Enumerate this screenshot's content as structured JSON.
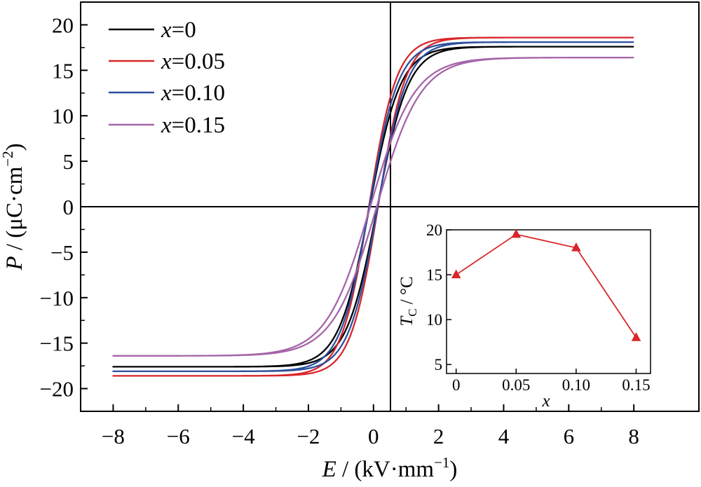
{
  "chart_data": [
    {
      "type": "line",
      "chart": "main",
      "xlabel": {
        "var": "E",
        "sep": " / (",
        "unit": "kV·mm",
        "sup": "−1",
        "end": ")"
      },
      "ylabel": {
        "var": "P",
        "sep": " / (",
        "unit": "μC·cm",
        "sup": "−2",
        "end": ")"
      },
      "xlim": [
        -9,
        10
      ],
      "ylim": [
        -22.5,
        22.5
      ],
      "xticks": [
        -8,
        -6,
        -4,
        -2,
        0,
        2,
        4,
        6,
        8
      ],
      "xtick_labels": [
        "−8",
        "−6",
        "−4",
        "−2",
        "0",
        "2",
        "4",
        "6",
        "8"
      ],
      "yticks": [
        -20,
        -15,
        -10,
        -5,
        0,
        5,
        10,
        15,
        20
      ],
      "ytick_labels": [
        "−20",
        "−15",
        "−10",
        "−5",
        "0",
        "5",
        "10",
        "15",
        "20"
      ],
      "legend_position": "top-left",
      "grid": false,
      "series": [
        {
          "name": "x=0",
          "var": "x",
          "eq": "=0",
          "color": "#000000",
          "Ps": 17.6,
          "Ec": 0.12,
          "Pr": 1.2,
          "a": 0.95
        },
        {
          "name": "x=0.05",
          "var": "x",
          "eq": "=0.05",
          "color": "#d8262b",
          "Ps": 18.6,
          "Ec": 0.14,
          "Pr": 1.7,
          "a": 0.85
        },
        {
          "name": "x=0.10",
          "var": "x",
          "eq": "=0.10",
          "color": "#2c4f9e",
          "Ps": 18.1,
          "Ec": 0.13,
          "Pr": 1.5,
          "a": 0.9
        },
        {
          "name": "x=0.15",
          "var": "x",
          "eq": "=0.15",
          "color": "#a565a9",
          "Ps": 16.4,
          "Ec": 0.1,
          "Pr": 0.7,
          "a": 1.35
        }
      ]
    },
    {
      "type": "line",
      "chart": "inset",
      "xlabel": "x",
      "ylabel": {
        "var": "T",
        "sub": "C",
        "rest": " / °C"
      },
      "categories": [
        "0",
        "0.05",
        "0.10",
        "0.15"
      ],
      "x": [
        0,
        0.05,
        0.1,
        0.15
      ],
      "values": [
        15,
        19.5,
        18,
        8
      ],
      "xlim": [
        -0.008,
        0.162
      ],
      "ylim": [
        4,
        20
      ],
      "yticks": [
        5,
        10,
        15,
        20
      ],
      "color": "#d8262b",
      "marker": "triangle"
    }
  ]
}
